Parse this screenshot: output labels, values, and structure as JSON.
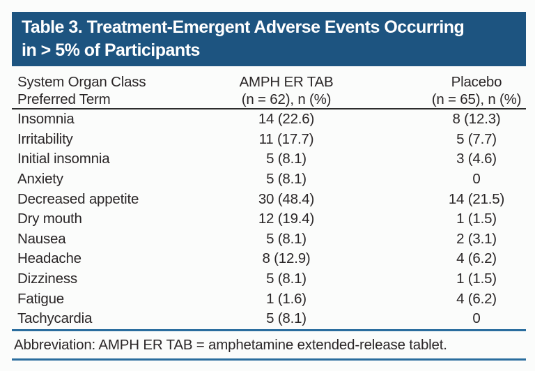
{
  "title_bar": {
    "line1": "Table 3. Treatment-Emergent Adverse Events Occurring",
    "line2": "in > 5% of Participants"
  },
  "table": {
    "header": {
      "col1_line1": "System Organ Class",
      "col1_line2": "Preferred Term",
      "col2_line1": "AMPH ER TAB",
      "col2_line2": "(n = 62), n (%)",
      "col3_line1": "Placebo",
      "col3_line2": "(n = 65), n (%)"
    },
    "rows": [
      {
        "term": "Insomnia",
        "amph": "14 (22.6)",
        "placebo": "8 (12.3)"
      },
      {
        "term": "Irritability",
        "amph": "11 (17.7)",
        "placebo": "5 (7.7)"
      },
      {
        "term": "Initial insomnia",
        "amph": "5 (8.1)",
        "placebo": "3 (4.6)"
      },
      {
        "term": "Anxiety",
        "amph": "5 (8.1)",
        "placebo": "0"
      },
      {
        "term": "Decreased appetite",
        "amph": "30 (48.4)",
        "placebo": "14 (21.5)"
      },
      {
        "term": "Dry mouth",
        "amph": "12 (19.4)",
        "placebo": "1 (1.5)"
      },
      {
        "term": "Nausea",
        "amph": "5 (8.1)",
        "placebo": "2 (3.1)"
      },
      {
        "term": "Headache",
        "amph": "8 (12.9)",
        "placebo": "4 (6.2)"
      },
      {
        "term": "Dizziness",
        "amph": "5 (8.1)",
        "placebo": "1 (1.5)"
      },
      {
        "term": "Fatigue",
        "amph": "1 (1.6)",
        "placebo": "4 (6.2)"
      },
      {
        "term": "Tachycardia",
        "amph": "5 (8.1)",
        "placebo": "0"
      }
    ]
  },
  "footnote": {
    "text": "Abbreviation: AMPH ER TAB = amphetamine extended-release tablet."
  },
  "colors": {
    "banner_background": "#1d5480",
    "banner_text": "#ffffff",
    "header_rule": "#2c2c2c",
    "blue_rule": "#2a6d9e",
    "body_text": "#2a2627",
    "page_background": "#fbfcfb"
  }
}
